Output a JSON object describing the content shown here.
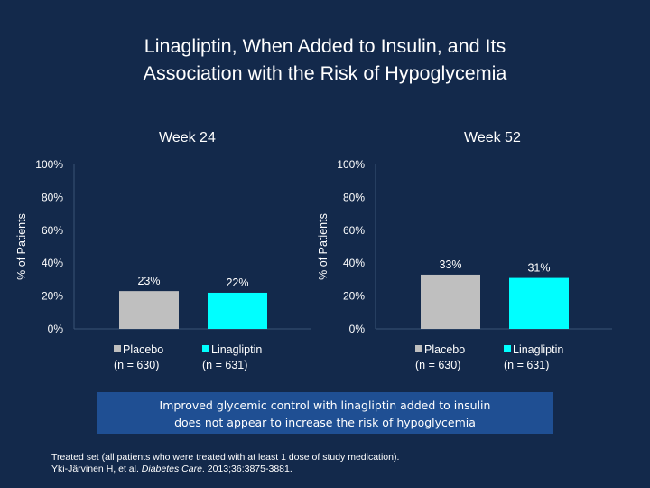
{
  "title_line1": "Linagliptin, When Added to Insulin, and Its",
  "title_line2": "Association with the Risk of Hypoglycemia",
  "chart_data": [
    {
      "type": "bar",
      "title": "Week 24",
      "ylabel": "% of Patients",
      "ylim": [
        0,
        100
      ],
      "yticks": [
        "0%",
        "20%",
        "40%",
        "60%",
        "80%",
        "100%"
      ],
      "categories": [
        "Placebo",
        "Linagliptin"
      ],
      "category_sublabels": [
        "(n = 630)",
        "(n = 631)"
      ],
      "values": [
        23,
        22
      ],
      "data_labels": [
        "23%",
        "22%"
      ],
      "colors": [
        "#bfbfbf",
        "#00ffff"
      ]
    },
    {
      "type": "bar",
      "title": "Week 52",
      "ylabel": "% of Patients",
      "ylim": [
        0,
        100
      ],
      "yticks": [
        "0%",
        "20%",
        "40%",
        "60%",
        "80%",
        "100%"
      ],
      "categories": [
        "Placebo",
        "Linagliptin"
      ],
      "category_sublabels": [
        "(n = 630)",
        "(n = 631)"
      ],
      "values": [
        33,
        31
      ],
      "data_labels": [
        "33%",
        "31%"
      ],
      "colors": [
        "#bfbfbf",
        "#00ffff"
      ]
    }
  ],
  "callout": {
    "line1": "Improved glycemic control with linagliptin added to insulin",
    "line2": "does not appear to increase the risk of hypoglycemia"
  },
  "footnote": {
    "line1": "Treated set (all patients who were treated with at least 1 dose of study medication).",
    "line2_prefix": "Yki-Järvinen H, et al. ",
    "line2_journal": "Diabetes Care",
    "line2_suffix": ". 2013;36:3875-3881."
  }
}
